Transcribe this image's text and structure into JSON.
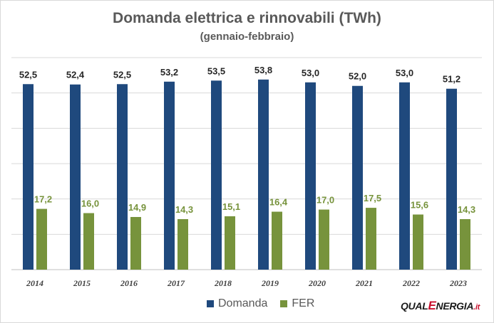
{
  "chart_data": {
    "type": "bar",
    "title": "Domanda elettrica e rinnovabili (TWh)",
    "subtitle": "(gennaio-febbraio)",
    "categories": [
      "2014",
      "2015",
      "2016",
      "2017",
      "2018",
      "2019",
      "2020",
      "2021",
      "2022",
      "2023"
    ],
    "series": [
      {
        "name": "Domanda",
        "color": "#1f497d",
        "values": [
          52.5,
          52.4,
          52.5,
          53.2,
          53.5,
          53.8,
          53.0,
          52.0,
          53.0,
          51.2
        ],
        "labels": [
          "52,5",
          "52,4",
          "52,5",
          "53,2",
          "53,5",
          "53,8",
          "53,0",
          "52,0",
          "53,0",
          "51,2"
        ]
      },
      {
        "name": "FER",
        "color": "#77933c",
        "values": [
          17.2,
          16.0,
          14.9,
          14.3,
          15.1,
          16.4,
          17.0,
          17.5,
          15.6,
          14.3
        ],
        "labels": [
          "17,2",
          "16,0",
          "14,9",
          "14,3",
          "15,1",
          "16,4",
          "17,0",
          "17,5",
          "15,6",
          "14,3"
        ]
      }
    ],
    "ylim": [
      0,
      60
    ],
    "grid": true,
    "legend": "bottom"
  },
  "logo": {
    "part1": "QUAL",
    "part2": "E",
    "part3": "NERGIA",
    "part4": ".it"
  }
}
